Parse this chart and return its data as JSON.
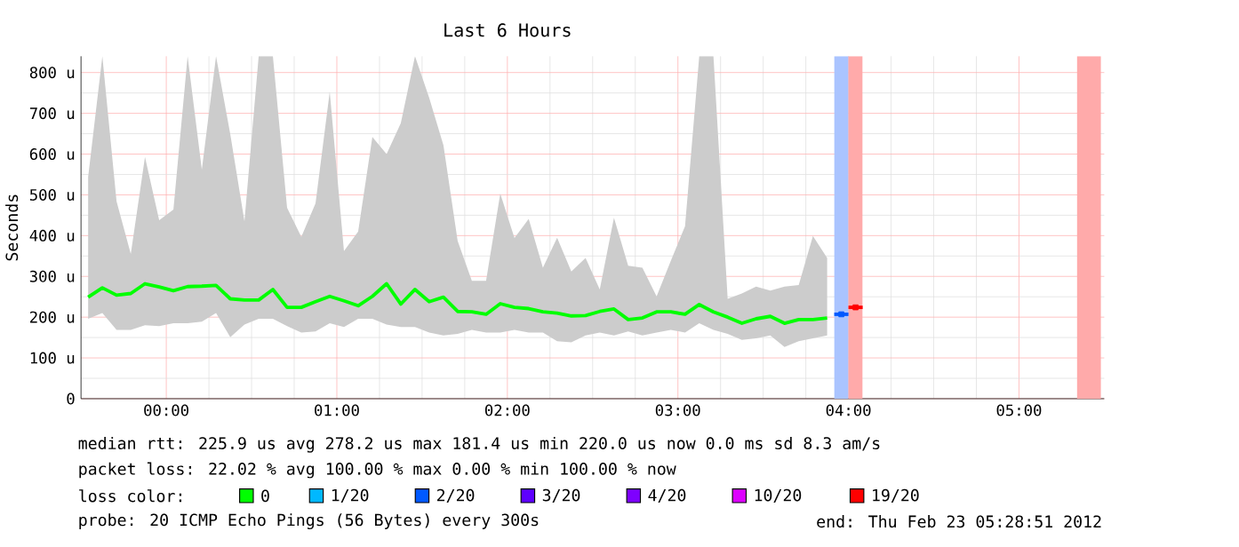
{
  "chart_data": {
    "type": "line",
    "title": "Last 6 Hours",
    "ylabel": "Seconds",
    "legend_title": "loss color:",
    "legend": "bottom",
    "grid": true,
    "xlim": [
      -0.5,
      5.5
    ],
    "xticks": [
      {
        "value": 0,
        "label": "00:00"
      },
      {
        "value": 1,
        "label": "01:00"
      },
      {
        "value": 2,
        "label": "02:00"
      },
      {
        "value": 3,
        "label": "03:00"
      },
      {
        "value": 4,
        "label": "04:00"
      },
      {
        "value": 5,
        "label": "05:00"
      }
    ],
    "ylim": [
      0,
      840
    ],
    "yticks": [
      0,
      {
        "value": 100,
        "label": "100 u"
      },
      {
        "value": 200,
        "label": "200 u"
      },
      {
        "value": 300,
        "label": "300 u"
      },
      {
        "value": 400,
        "label": "400 u"
      },
      {
        "value": 500,
        "label": "500 u"
      },
      {
        "value": 600,
        "label": "600 u"
      },
      {
        "value": 700,
        "label": "700 u"
      },
      {
        "value": 800,
        "label": "800 u"
      }
    ],
    "series": [
      {
        "name": "0",
        "color": "#00ff00",
        "x": [
          -0.4583,
          -0.375,
          -0.2917,
          -0.2083,
          -0.125,
          -0.0417,
          0.0417,
          0.125,
          0.2083,
          0.2917,
          0.375,
          0.4583,
          0.5417,
          0.625,
          0.7083,
          0.7917,
          0.875,
          0.9583,
          1.0417,
          1.125,
          1.2083,
          1.2917,
          1.375,
          1.4583,
          1.5417,
          1.625,
          1.7083,
          1.7917,
          1.875,
          1.9583,
          2.0417,
          2.125,
          2.2083,
          2.2917,
          2.375,
          2.4583,
          2.5417,
          2.625,
          2.7083,
          2.7917,
          2.875,
          2.9583,
          3.0417,
          3.125,
          3.2083,
          3.2917,
          3.375,
          3.4583,
          3.5417,
          3.625,
          3.7083,
          3.7917,
          3.875
        ],
        "values": [
          249,
          272,
          254,
          258,
          282,
          274,
          265,
          275,
          276,
          278,
          245,
          242,
          242,
          268,
          224,
          224,
          238,
          251,
          240,
          228,
          251,
          282,
          232,
          268,
          238,
          249,
          214,
          213,
          207,
          233,
          224,
          221,
          213,
          210,
          203,
          204,
          214,
          220,
          194,
          198,
          213,
          213,
          207,
          231,
          213,
          200,
          185,
          196,
          202,
          185,
          194,
          194,
          198
        ],
        "lower": [
          196,
          210,
          169,
          169,
          180,
          178,
          185,
          185,
          189,
          210,
          151,
          182,
          196,
          196,
          178,
          162,
          165,
          185,
          176,
          196,
          196,
          182,
          176,
          176,
          162,
          155,
          159,
          169,
          162,
          162,
          169,
          162,
          162,
          141,
          138,
          155,
          162,
          155,
          165,
          155,
          162,
          169,
          162,
          185,
          169,
          159,
          144,
          148,
          155,
          127,
          141,
          148,
          155
        ],
        "upper": [
          544,
          840,
          484,
          355,
          593,
          438,
          464,
          840,
          562,
          840,
          649,
          435,
          840,
          840,
          468,
          397,
          479,
          753,
          362,
          410,
          642,
          600,
          676,
          840,
          738,
          622,
          387,
          289,
          289,
          503,
          394,
          441,
          321,
          395,
          312,
          345,
          268,
          444,
          326,
          321,
          251,
          338,
          423,
          840,
          840,
          245,
          258,
          275,
          265,
          275,
          279,
          399,
          345
        ]
      },
      {
        "name": "1/20",
        "color": "#00b8ff"
      },
      {
        "name": "2/20",
        "color": "#0059ff",
        "x": [
          3.9583
        ],
        "values": [
          207
        ],
        "xerrors": [
          0.0417
        ],
        "marker": "square"
      },
      {
        "name": "3/20",
        "color": "#5e00ff"
      },
      {
        "name": "4/20",
        "color": "#7e00ff"
      },
      {
        "name": "10/20",
        "color": "#dd00ff"
      },
      {
        "name": "19/20",
        "color": "#ff0000",
        "x": [
          4.0417
        ],
        "values": [
          224
        ],
        "xerrors": [
          0.0417
        ],
        "marker": "square"
      }
    ],
    "bands": [
      {
        "axis": "x",
        "from": 3.917,
        "to": 4.0,
        "color": "#aac4ff"
      },
      {
        "axis": "x",
        "from": 4.0,
        "to": 4.083,
        "color": "#ffaaaa"
      },
      {
        "axis": "x",
        "from": 5.34,
        "to": 5.48,
        "color": "#ffaaaa"
      }
    ],
    "annotations": [
      "median rtt: 225.9 us avg 278.2 us max 181.4 us min 220.0 us now 0.0 ms sd 8.3 am/s",
      "packet loss: 22.02 % avg 100.00 % max 0.00 % min 100.00 % now",
      "probe: 20 ICMP Echo Pings (56 Bytes) every 300s",
      "end: Thu Feb 23 05:28:51 2012"
    ]
  }
}
